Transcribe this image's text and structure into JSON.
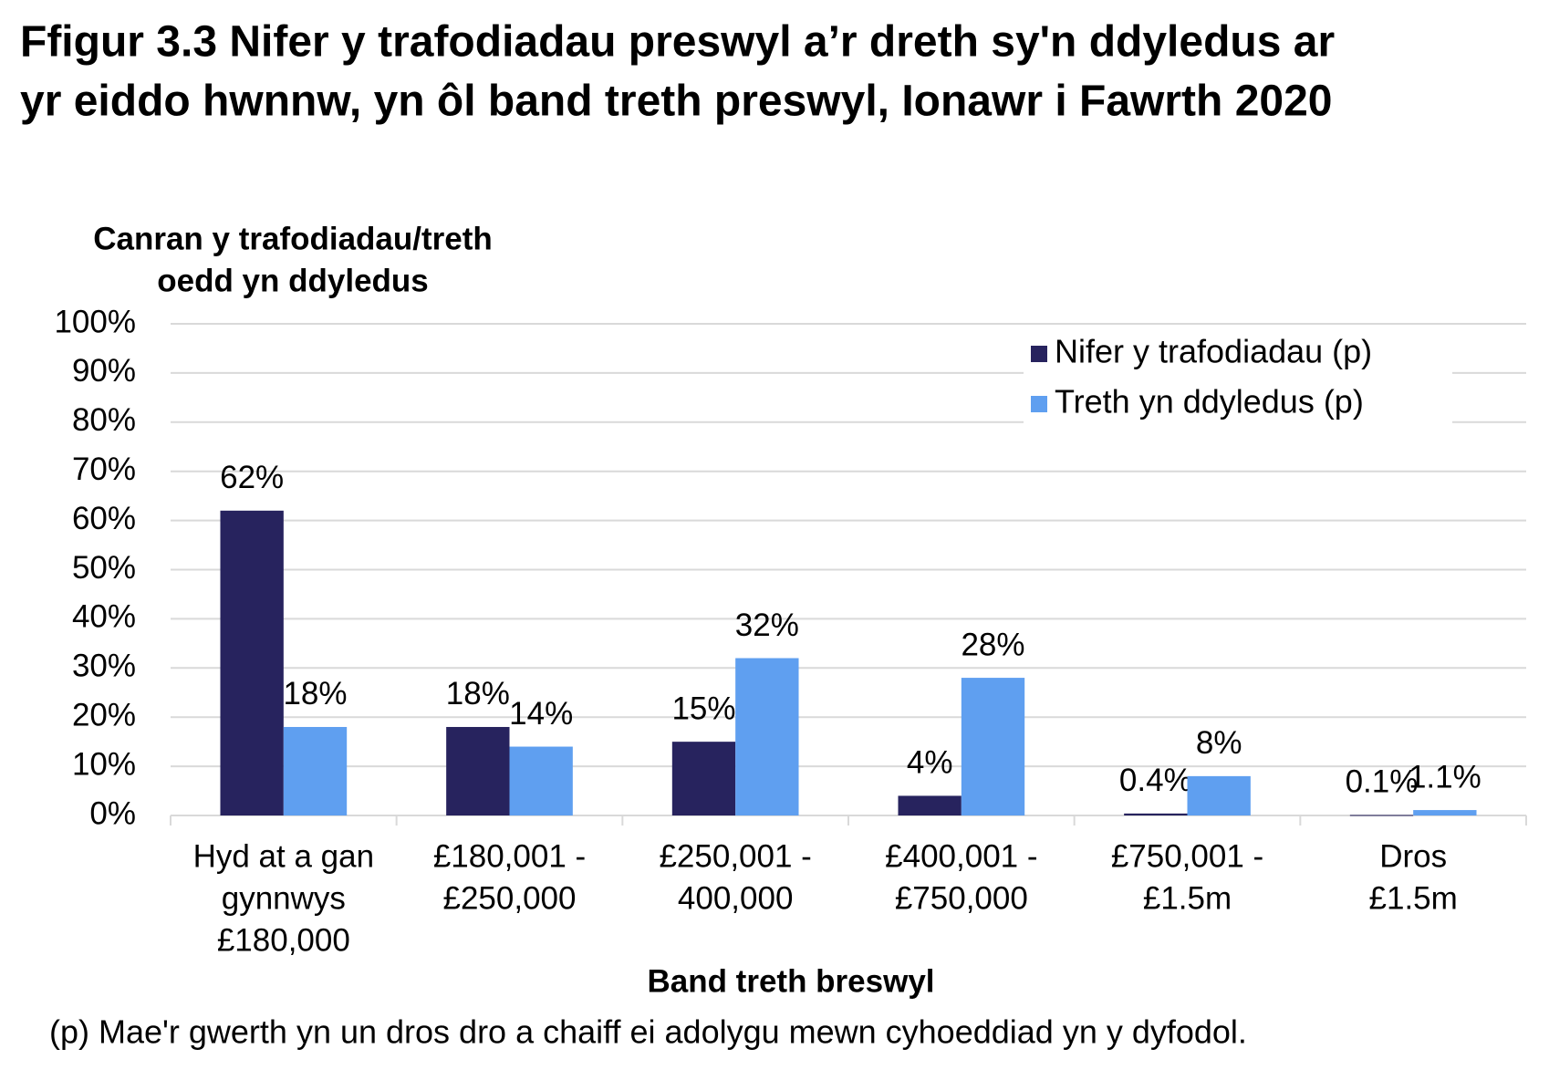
{
  "chart_data": {
    "type": "bar",
    "title": [
      "Ffigur 3.3  Nifer y trafodiadau preswyl a’r dreth sy'n ddyledus ar",
      "yr eiddo hwnnw, yn ôl band treth preswyl, Ionawr i Fawrth 2020"
    ],
    "y_label": [
      "Canran y trafodiadau/treth",
      "oedd yn ddyledus"
    ],
    "x_label": "Band treth breswyl",
    "note": "(p) Mae'r gwerth yn un dros dro a chaiff ei adolygu mewn cyhoeddiad yn y dyfodol.",
    "categories": [
      [
        "Hyd at a gan",
        "gynnwys",
        "£180,000"
      ],
      [
        "£180,001 -",
        "£250,000"
      ],
      [
        "£250,001 -",
        "400,000"
      ],
      [
        "£400,001 -",
        "£750,000"
      ],
      [
        "£750,001 -",
        "£1.5m"
      ],
      [
        "Dros",
        "£1.5m"
      ]
    ],
    "series": [
      {
        "name": "Nifer y trafodiadau (p)",
        "color": "#27235e",
        "values": [
          62,
          18,
          15,
          4,
          0.4,
          0.1
        ],
        "value_labels": [
          "62%",
          "18%",
          "15%",
          "4%",
          "0.4%",
          "0.1%"
        ]
      },
      {
        "name": "Treth yn ddyledus (p)",
        "color": "#5f9ff0",
        "values": [
          18,
          14,
          32,
          28,
          8,
          1.1
        ],
        "value_labels": [
          "18%",
          "14%",
          "32%",
          "28%",
          "8%",
          "1.1%"
        ]
      }
    ],
    "ylim": [
      0,
      100
    ],
    "yticks": [
      {
        "value": 0,
        "label": "0%"
      },
      {
        "value": 10,
        "label": "10%"
      },
      {
        "value": 20,
        "label": "20%"
      },
      {
        "value": 30,
        "label": "30%"
      },
      {
        "value": 40,
        "label": "40%"
      },
      {
        "value": 50,
        "label": "50%"
      },
      {
        "value": 60,
        "label": "60%"
      },
      {
        "value": 70,
        "label": "70%"
      },
      {
        "value": 80,
        "label": "80%"
      },
      {
        "value": 90,
        "label": "90%"
      },
      {
        "value": 100,
        "label": "100%"
      }
    ],
    "grid": true,
    "legend": "top-right"
  }
}
